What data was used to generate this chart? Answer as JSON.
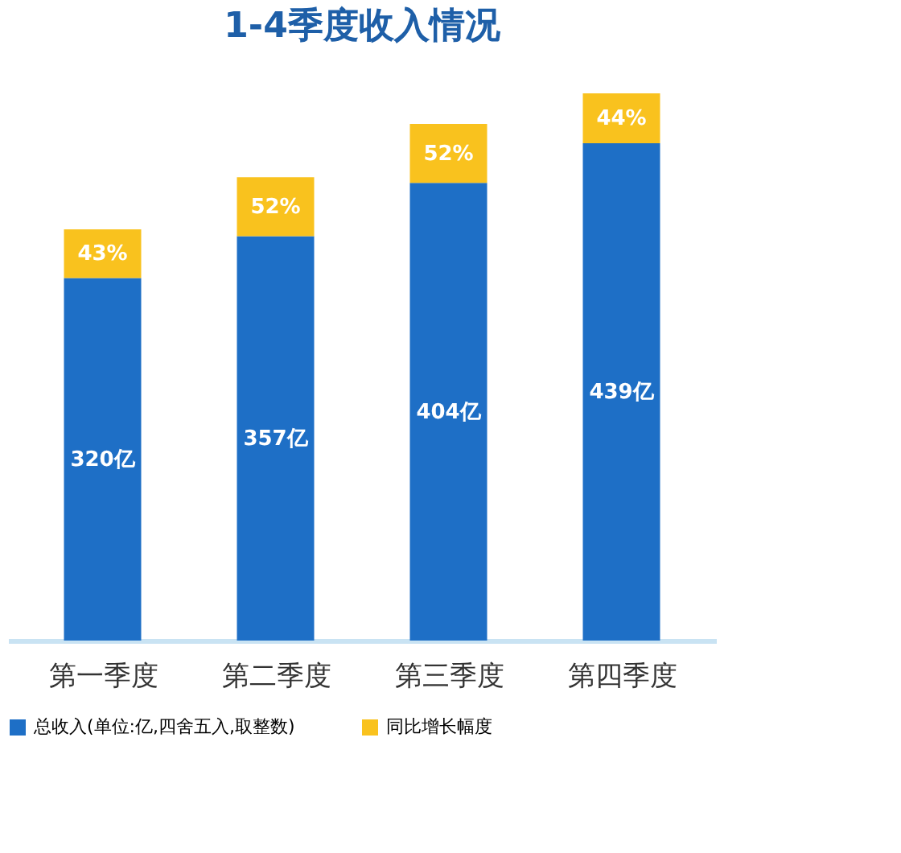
{
  "chart_data": {
    "type": "bar",
    "title": "1-4季度收入情况",
    "categories": [
      "第一季度",
      "第二季度",
      "第三季度",
      "第四季度"
    ],
    "stacked": true,
    "tick_labels": "x",
    "grid": false,
    "legend": "bottom",
    "data_labels": false,
    "series": [
      {
        "name": "总收入(单位:亿,四舍五入,取整数)",
        "color": "#1e6fc6",
        "values": [
          320,
          357,
          404,
          439
        ],
        "value_labels": [
          "320亿",
          "357亿",
          "404亿",
          "439亿"
        ]
      },
      {
        "name": "同比增长幅度",
        "color": "#f9c21e",
        "values": [
          43,
          52,
          52,
          44
        ],
        "value_labels": [
          "43%",
          "52%",
          "52%",
          "44%"
        ]
      }
    ]
  }
}
